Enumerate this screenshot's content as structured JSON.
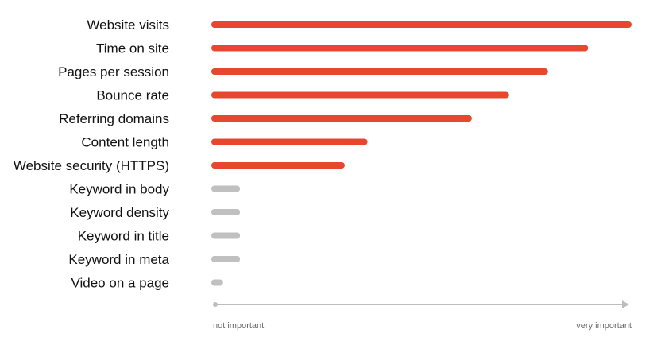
{
  "chart_data": {
    "type": "bar",
    "orientation": "horizontal",
    "categories": [
      "Website visits",
      "Time on site",
      "Pages per session",
      "Bounce rate",
      "Referring domains",
      "Content length",
      "Website security (HTTPS)",
      "Keyword  in body",
      "Keyword density",
      "Keyword  in title",
      "Keyword  in meta",
      "Video on a page"
    ],
    "values": [
      100,
      89.5,
      79.8,
      70.4,
      61.4,
      36.2,
      30.7,
      5.4,
      5.4,
      5.4,
      5.4,
      1.3
    ],
    "xlim": [
      0,
      100
    ],
    "grid": false,
    "legend": "none",
    "colors": {
      "important": "#e8472f",
      "unimportant": "#c0c0c0",
      "axis": "#bdbdbd"
    },
    "bar_colors": [
      "important",
      "important",
      "important",
      "important",
      "important",
      "important",
      "important",
      "unimportant",
      "unimportant",
      "unimportant",
      "unimportant",
      "unimportant"
    ],
    "axis": {
      "min_label": "not important",
      "max_label": "very important"
    }
  }
}
